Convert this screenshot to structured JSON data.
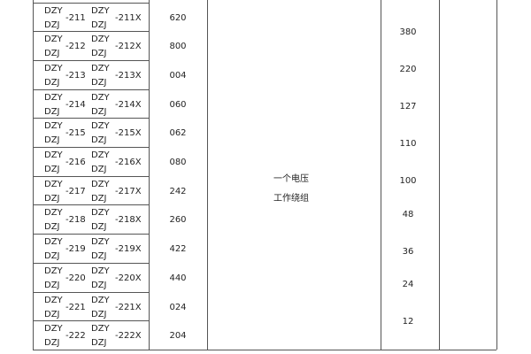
{
  "table": {
    "rows": [
      {
        "top": "DZY",
        "bottom": "DZJ",
        "num": "-211",
        "top2": "DZY",
        "bottom2": "DZJ",
        "numx": "-211X",
        "value": "620"
      },
      {
        "top": "DZY",
        "bottom": "DZJ",
        "num": "-212",
        "top2": "DZY",
        "bottom2": "DZJ",
        "numx": "-212X",
        "value": "800"
      },
      {
        "top": "DZY",
        "bottom": "DZJ",
        "num": "-213",
        "top2": "DZY",
        "bottom2": "DZJ",
        "numx": "-213X",
        "value": "004"
      },
      {
        "top": "DZY",
        "bottom": "DZJ",
        "num": "-214",
        "top2": "DZY",
        "bottom2": "DZJ",
        "numx": "-214X",
        "value": "060"
      },
      {
        "top": "DZY",
        "bottom": "DZJ",
        "num": "-215",
        "top2": "DZY",
        "bottom2": "DZJ",
        "numx": "-215X",
        "value": "062"
      },
      {
        "top": "DZY",
        "bottom": "DZJ",
        "num": "-216",
        "top2": "DZY",
        "bottom2": "DZJ",
        "numx": "-216X",
        "value": "080"
      },
      {
        "top": "DZY",
        "bottom": "DZJ",
        "num": "-217",
        "top2": "DZY",
        "bottom2": "DZJ",
        "numx": "-217X",
        "value": "242"
      },
      {
        "top": "DZY",
        "bottom": "DZJ",
        "num": "-218",
        "top2": "DZY",
        "bottom2": "DZJ",
        "numx": "-218X",
        "value": "260"
      },
      {
        "top": "DZY",
        "bottom": "DZJ",
        "num": "-219",
        "top2": "DZY",
        "bottom2": "DZJ",
        "numx": "-219X",
        "value": "422"
      },
      {
        "top": "DZY",
        "bottom": "DZJ",
        "num": "-220",
        "top2": "DZY",
        "bottom2": "DZJ",
        "numx": "-220X",
        "value": "440"
      },
      {
        "top": "DZY",
        "bottom": "DZJ",
        "num": "-221",
        "top2": "DZY",
        "bottom2": "DZJ",
        "numx": "-221X",
        "value": "024"
      },
      {
        "top": "DZY",
        "bottom": "DZJ",
        "num": "-222",
        "top2": "DZY",
        "bottom2": "DZJ",
        "numx": "-222X",
        "value": "204"
      }
    ],
    "winding_line1": "一个电压",
    "winding_line2": "工作绕组",
    "voltages": [
      "380",
      "220",
      "127",
      "110",
      "100",
      "48",
      "36",
      "24",
      "12"
    ]
  }
}
